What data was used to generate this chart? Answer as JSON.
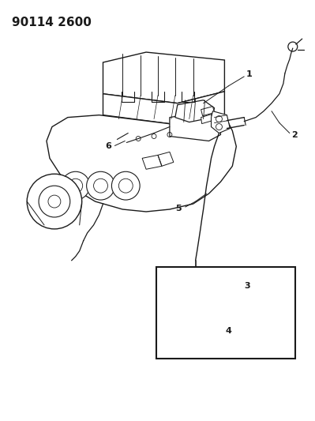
{
  "title": "90114 2600",
  "title_fontsize": 11,
  "bg_color": "#ffffff",
  "line_color": "#1a1a1a",
  "fig_width": 3.99,
  "fig_height": 5.33,
  "dpi": 100
}
